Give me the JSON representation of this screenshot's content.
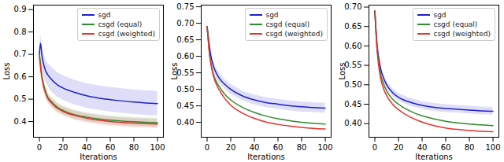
{
  "chart_data": [
    {
      "type": "line",
      "x_label": "Iterations",
      "y_label": "Loss",
      "x": [
        0,
        1,
        2,
        3,
        5,
        7,
        10,
        15,
        20,
        30,
        40,
        50,
        60,
        70,
        80,
        90,
        100
      ],
      "xlim": [
        -5,
        105
      ],
      "xticks": [
        0,
        20,
        40,
        60,
        80,
        100
      ],
      "ylim": [
        0.33,
        0.92
      ],
      "yticks": [
        0.4,
        0.5,
        0.6,
        0.7,
        0.8,
        0.9
      ],
      "grid": false,
      "legend": "upper right",
      "series": [
        {
          "name": "sgd",
          "color": "#1f1fd1",
          "values": [
            0.7,
            0.75,
            0.7,
            0.67,
            0.63,
            0.61,
            0.59,
            0.565,
            0.55,
            0.53,
            0.515,
            0.505,
            0.498,
            0.492,
            0.487,
            0.483,
            0.48
          ],
          "lower": [
            0.67,
            0.71,
            0.655,
            0.62,
            0.58,
            0.56,
            0.535,
            0.51,
            0.495,
            0.475,
            0.46,
            0.45,
            0.443,
            0.437,
            0.432,
            0.428,
            0.425
          ],
          "upper": [
            0.73,
            0.79,
            0.745,
            0.72,
            0.68,
            0.66,
            0.645,
            0.62,
            0.605,
            0.585,
            0.57,
            0.56,
            0.553,
            0.547,
            0.542,
            0.538,
            0.535
          ]
        },
        {
          "name": "csgd (equal)",
          "color": "#2e8b2e",
          "values": [
            0.7,
            0.66,
            0.61,
            0.58,
            0.54,
            0.51,
            0.49,
            0.465,
            0.45,
            0.43,
            0.42,
            0.412,
            0.406,
            0.402,
            0.399,
            0.397,
            0.395
          ],
          "lower": [
            0.68,
            0.64,
            0.59,
            0.56,
            0.52,
            0.49,
            0.47,
            0.445,
            0.43,
            0.41,
            0.4,
            0.392,
            0.386,
            0.382,
            0.379,
            0.377,
            0.375
          ],
          "upper": [
            0.72,
            0.68,
            0.63,
            0.6,
            0.56,
            0.53,
            0.51,
            0.485,
            0.47,
            0.45,
            0.44,
            0.432,
            0.426,
            0.422,
            0.419,
            0.417,
            0.415
          ]
        },
        {
          "name": "csgd (weighted)",
          "color": "#e8302a",
          "values": [
            0.69,
            0.64,
            0.6,
            0.57,
            0.53,
            0.505,
            0.485,
            0.46,
            0.445,
            0.427,
            0.415,
            0.406,
            0.4,
            0.396,
            0.393,
            0.391,
            0.389
          ],
          "lower": [
            0.67,
            0.62,
            0.58,
            0.55,
            0.51,
            0.485,
            0.465,
            0.44,
            0.425,
            0.407,
            0.395,
            0.386,
            0.38,
            0.376,
            0.373,
            0.371,
            0.369
          ],
          "upper": [
            0.71,
            0.66,
            0.62,
            0.59,
            0.55,
            0.525,
            0.505,
            0.48,
            0.465,
            0.447,
            0.435,
            0.426,
            0.42,
            0.416,
            0.413,
            0.411,
            0.409
          ]
        }
      ]
    },
    {
      "type": "line",
      "x_label": "Iterations",
      "y_label": "Loss",
      "x": [
        0,
        1,
        2,
        3,
        5,
        7,
        10,
        15,
        20,
        30,
        40,
        50,
        60,
        70,
        80,
        90,
        100
      ],
      "xlim": [
        -5,
        105
      ],
      "xticks": [
        0,
        20,
        40,
        60,
        80,
        100
      ],
      "ylim": [
        0.355,
        0.755
      ],
      "yticks": [
        {
          "value": 0.4,
          "label": "0.40"
        },
        0.45,
        {
          "value": 0.5,
          "label": "0.50"
        },
        0.55,
        {
          "value": 0.6,
          "label": "0.60"
        },
        0.65,
        {
          "value": 0.7,
          "label": "0.70"
        },
        0.75
      ],
      "grid": false,
      "legend": "upper right",
      "series": [
        {
          "name": "sgd",
          "color": "#1f1fd1",
          "values": [
            0.69,
            0.66,
            0.63,
            0.605,
            0.575,
            0.555,
            0.535,
            0.515,
            0.5,
            0.48,
            0.468,
            0.46,
            0.455,
            0.45,
            0.447,
            0.445,
            0.443
          ],
          "lower": [
            0.675,
            0.645,
            0.615,
            0.59,
            0.56,
            0.54,
            0.52,
            0.5,
            0.485,
            0.465,
            0.453,
            0.445,
            0.44,
            0.435,
            0.432,
            0.43,
            0.428
          ],
          "upper": [
            0.705,
            0.675,
            0.645,
            0.62,
            0.59,
            0.57,
            0.55,
            0.53,
            0.515,
            0.495,
            0.483,
            0.475,
            0.47,
            0.465,
            0.462,
            0.46,
            0.458
          ]
        },
        {
          "name": "csgd (equal)",
          "color": "#2e8b2e",
          "values": [
            0.69,
            0.65,
            0.61,
            0.585,
            0.55,
            0.53,
            0.51,
            0.485,
            0.468,
            0.445,
            0.43,
            0.419,
            0.411,
            0.405,
            0.4,
            0.397,
            0.395
          ]
        },
        {
          "name": "csgd (weighted)",
          "color": "#e8302a",
          "values": [
            0.69,
            0.645,
            0.605,
            0.58,
            0.545,
            0.522,
            0.5,
            0.472,
            0.452,
            0.428,
            0.412,
            0.401,
            0.394,
            0.389,
            0.385,
            0.382,
            0.38
          ]
        }
      ]
    },
    {
      "type": "line",
      "x_label": "Iterations",
      "y_label": "Loss",
      "x": [
        0,
        1,
        2,
        3,
        5,
        7,
        10,
        15,
        20,
        30,
        40,
        50,
        60,
        70,
        80,
        90,
        100
      ],
      "xlim": [
        -5,
        105
      ],
      "xticks": [
        0,
        20,
        40,
        60,
        80,
        100
      ],
      "ylim": [
        0.365,
        0.705
      ],
      "yticks": [
        {
          "value": 0.4,
          "label": "0.40"
        },
        0.45,
        {
          "value": 0.5,
          "label": "0.50"
        },
        0.55,
        {
          "value": 0.6,
          "label": "0.60"
        },
        0.65,
        {
          "value": 0.7,
          "label": "0.70"
        }
      ],
      "grid": false,
      "legend": "upper right",
      "series": [
        {
          "name": "sgd",
          "color": "#1f1fd1",
          "values": [
            0.69,
            0.64,
            0.6,
            0.575,
            0.54,
            0.52,
            0.5,
            0.48,
            0.468,
            0.455,
            0.447,
            0.442,
            0.439,
            0.437,
            0.435,
            0.433,
            0.432
          ],
          "lower": [
            0.68,
            0.63,
            0.59,
            0.565,
            0.53,
            0.51,
            0.49,
            0.47,
            0.458,
            0.445,
            0.437,
            0.432,
            0.429,
            0.427,
            0.425,
            0.423,
            0.422
          ],
          "upper": [
            0.7,
            0.65,
            0.61,
            0.585,
            0.55,
            0.53,
            0.51,
            0.49,
            0.478,
            0.465,
            0.457,
            0.452,
            0.449,
            0.447,
            0.445,
            0.443,
            0.442
          ]
        },
        {
          "name": "csgd (equal)",
          "color": "#2e8b2e",
          "values": [
            0.69,
            0.635,
            0.59,
            0.565,
            0.525,
            0.505,
            0.484,
            0.463,
            0.45,
            0.432,
            0.42,
            0.412,
            0.406,
            0.402,
            0.399,
            0.397,
            0.395
          ]
        },
        {
          "name": "csgd (weighted)",
          "color": "#e8302a",
          "values": [
            0.69,
            0.63,
            0.585,
            0.555,
            0.515,
            0.493,
            0.472,
            0.45,
            0.436,
            0.417,
            0.404,
            0.395,
            0.389,
            0.385,
            0.382,
            0.38,
            0.379
          ]
        }
      ]
    }
  ]
}
